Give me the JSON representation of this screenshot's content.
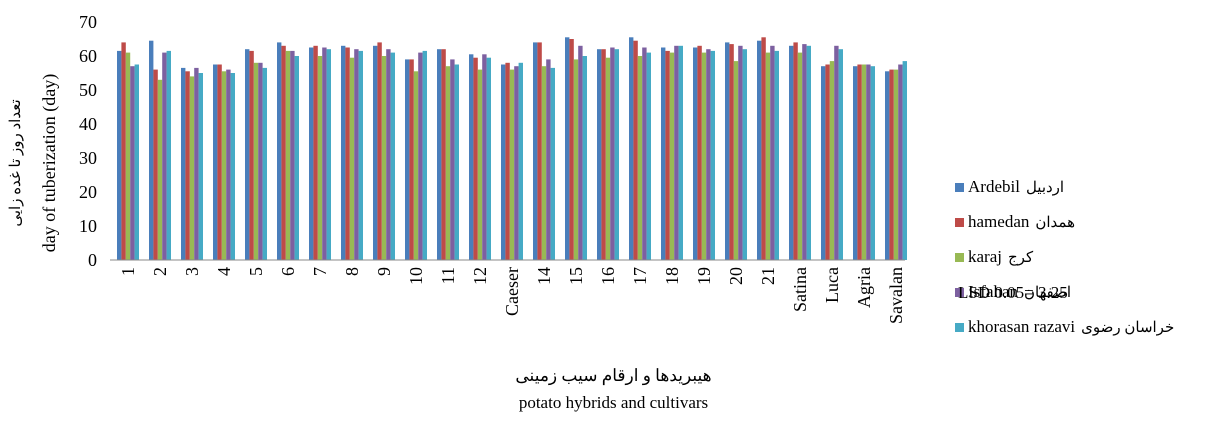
{
  "chart_data": {
    "type": "bar",
    "ylabel_fa": "تعداد روز تا غده زایی",
    "ylabel_en": "day of tuberization (day)",
    "xlabel_fa": "هیبریدها و ارقام  سیب زمینی",
    "xlabel_en": "potato hybrids and cultivars",
    "ylim": [
      0,
      70
    ],
    "yticks": [
      "0",
      "10",
      "20",
      "30",
      "40",
      "50",
      "60",
      "70"
    ],
    "categories": [
      "1",
      "2",
      "3",
      "4",
      "5",
      "6",
      "7",
      "8",
      "9",
      "10",
      "11",
      "12",
      "Caeser",
      "14",
      "15",
      "16",
      "17",
      "18",
      "19",
      "20",
      "21",
      "Satina",
      "Luca",
      "Agria",
      "Savalan"
    ],
    "series": [
      {
        "name": "Ardebil",
        "label_fa": "اردبیل",
        "color": "#4A7EBB",
        "values": [
          61.5,
          64.5,
          56.5,
          57.5,
          62,
          64,
          62.5,
          63,
          63,
          59,
          62,
          60.5,
          57.5,
          64,
          65.5,
          62,
          65.5,
          62.5,
          62.5,
          64,
          64.5,
          63,
          57,
          57,
          55.5
        ]
      },
      {
        "name": "hamedan",
        "label_fa": "همدان",
        "color": "#BE4B48",
        "values": [
          64,
          56,
          55.5,
          57.5,
          61.5,
          63,
          63,
          62.5,
          64,
          59,
          62,
          59.5,
          58,
          64,
          65,
          62,
          64.5,
          61.5,
          63,
          63.5,
          65.5,
          64,
          57.5,
          57.5,
          56
        ]
      },
      {
        "name": "karaj",
        "label_fa": "کرج",
        "color": "#98B954",
        "values": [
          61,
          53,
          54,
          55.5,
          58,
          61.5,
          60,
          59.5,
          60,
          55.5,
          57,
          56,
          56,
          57,
          59,
          59.5,
          60,
          61,
          61,
          58.5,
          61,
          61,
          58.5,
          57.5,
          56
        ]
      },
      {
        "name": "Isfahan",
        "label_fa": "اصفهان",
        "color": "#7D60A0",
        "values": [
          57,
          61,
          56.5,
          56,
          58,
          61.5,
          62.5,
          62,
          62,
          61,
          59,
          60.5,
          57,
          59,
          63,
          62.5,
          62.5,
          63,
          62,
          63,
          63,
          63.5,
          63,
          57.5,
          57.5
        ]
      },
      {
        "name": "khorasan razavi",
        "label_fa": "خراسان رضوی",
        "color": "#46AAC5",
        "values": [
          57.5,
          61.5,
          55,
          55,
          56.5,
          60,
          62,
          61.5,
          61,
          61.5,
          57.5,
          59.5,
          58,
          56.5,
          60,
          62,
          61,
          63,
          61.5,
          62,
          61.5,
          63,
          62,
          57,
          58.5
        ]
      }
    ],
    "legend_position": "right",
    "annotation": "LSD 0.05=  3.25",
    "grid": false
  }
}
